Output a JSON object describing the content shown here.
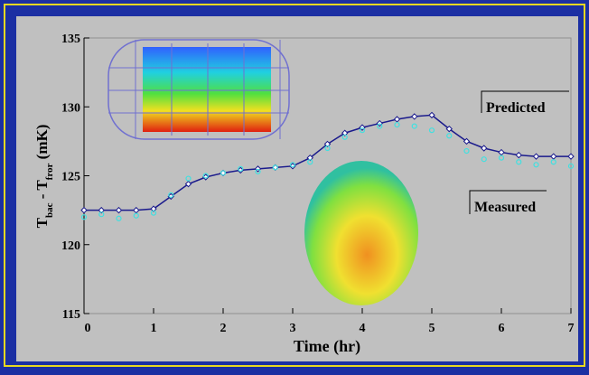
{
  "chart_data": {
    "type": "line",
    "x_label": "Time (hr)",
    "y_label": [
      {
        "text": "T",
        "sub": false
      },
      {
        "text": "bac",
        "sub": true
      },
      {
        "text": " - T",
        "sub": false
      },
      {
        "text": "fror",
        "sub": true
      },
      {
        "text": " (mK)",
        "sub": false
      }
    ],
    "x": [
      0,
      0.25,
      0.5,
      0.75,
      1.0,
      1.25,
      1.5,
      1.75,
      2.0,
      2.25,
      2.5,
      2.75,
      3.0,
      3.25,
      3.5,
      3.75,
      4.0,
      4.25,
      4.5,
      4.75,
      5.0,
      5.25,
      5.5,
      5.75,
      6.0,
      6.25,
      6.5,
      6.75,
      7.0
    ],
    "series": [
      {
        "name": "Predicted",
        "color": "#1a1a8c",
        "marker": "diamond",
        "values": [
          122.5,
          122.5,
          122.5,
          122.5,
          122.6,
          123.5,
          124.4,
          124.9,
          125.2,
          125.4,
          125.5,
          125.6,
          125.7,
          126.3,
          127.3,
          128.1,
          128.5,
          128.8,
          129.1,
          129.3,
          129.4,
          128.4,
          127.5,
          127.0,
          126.7,
          126.5,
          126.4,
          126.4,
          126.4
        ]
      },
      {
        "name": "Measured",
        "color": "#40e0e0",
        "marker": "circle",
        "values": [
          122.0,
          122.2,
          121.9,
          122.1,
          122.3,
          123.6,
          124.8,
          125.0,
          125.2,
          125.5,
          125.3,
          125.6,
          125.8,
          126.0,
          127.0,
          127.8,
          128.3,
          128.6,
          128.7,
          128.6,
          128.3,
          127.9,
          126.8,
          126.2,
          126.3,
          126.0,
          125.8,
          126.0,
          125.7
        ]
      }
    ],
    "xlim": [
      0,
      7
    ],
    "xticks": [
      0,
      1,
      2,
      3,
      4,
      5,
      6,
      7
    ],
    "ylim": [
      115,
      135
    ],
    "yticks": [
      115,
      120,
      125,
      130,
      135
    ],
    "grid": false
  }
}
